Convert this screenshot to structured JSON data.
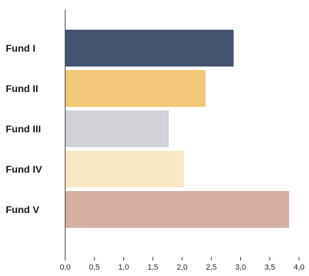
{
  "chart_data": {
    "type": "bar",
    "orientation": "horizontal",
    "categories": [
      "Fund I",
      "Fund II",
      "Fund III",
      "Fund IV",
      "Fund V"
    ],
    "values": [
      2.88,
      2.4,
      1.77,
      2.03,
      3.83
    ],
    "colors": [
      "#44546e",
      "#f2c97a",
      "#d0d2d7",
      "#f8e8c8",
      "#d4b0a2"
    ],
    "title": "",
    "xlabel": "",
    "ylabel": "",
    "xlim": [
      0,
      4
    ],
    "xticks": [
      0,
      0.5,
      1,
      1.5,
      2,
      2.5,
      3,
      3.5,
      4
    ],
    "xtick_labels": [
      "0,0",
      "0,5",
      "1,0",
      "1,5",
      "2,0",
      "2,5",
      "3,0",
      "3,5",
      "4,0"
    ],
    "grid": false,
    "legend": "none"
  }
}
